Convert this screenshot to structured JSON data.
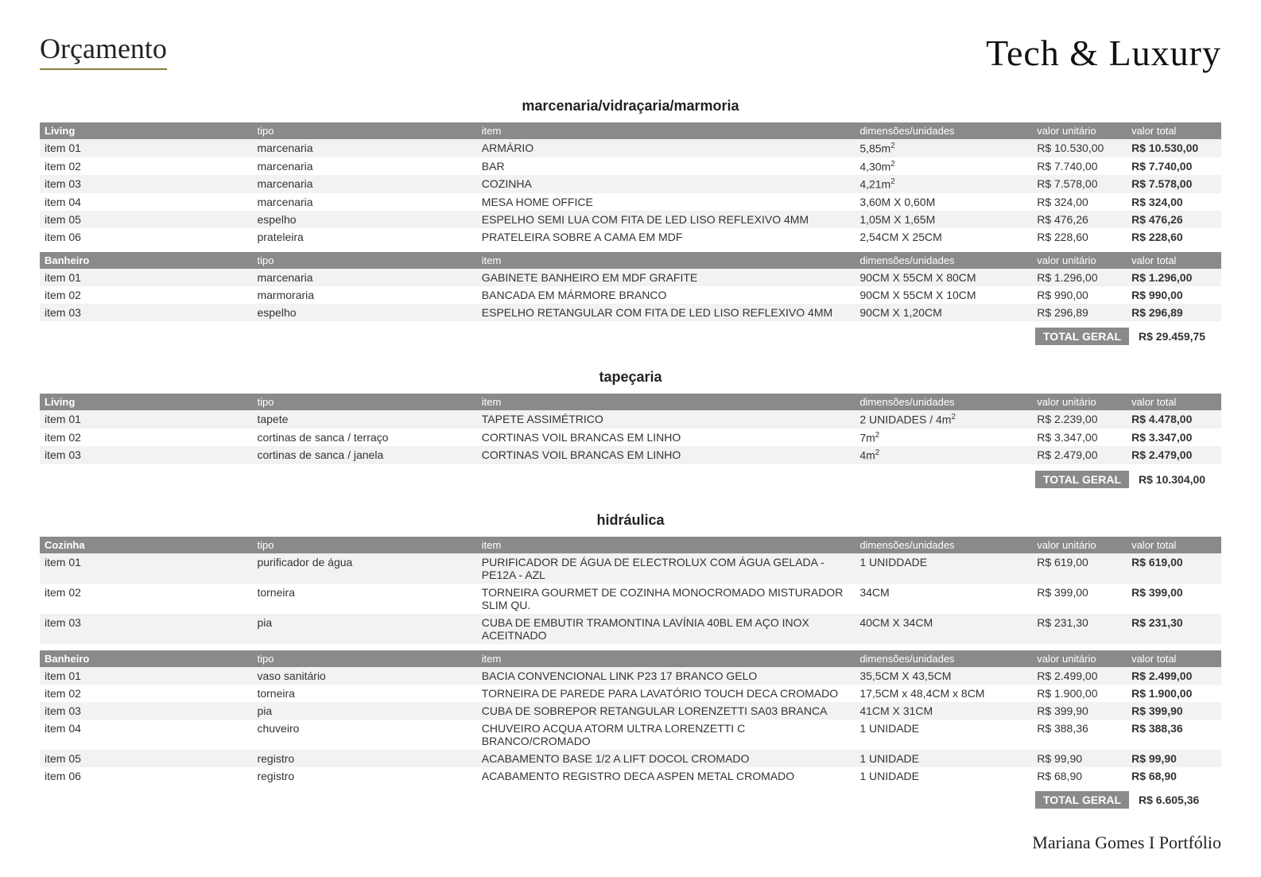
{
  "header": {
    "title": "Orçamento",
    "brand": "Tech & Luxury"
  },
  "footer": "Mariana Gomes I Portfólio",
  "colors": {
    "header_bg": "#8a8a8a",
    "header_text": "#ffffff",
    "row_alt": "#f2f2f2",
    "underline": "#8b7d3a"
  },
  "sections": [
    {
      "title": "marcenaria/vidraçaria/marmoria",
      "tables": [
        {
          "group": "Living",
          "columns": [
            "tipo",
            "item",
            "dimensões/unidades",
            "valor unitário",
            "valor total"
          ],
          "rows": [
            {
              "name": "item 01",
              "tipo": "marcenaria",
              "item": "ARMÁRIO",
              "dim": "5,85m²",
              "unit": "R$ 10.530,00",
              "total": "R$ 10.530,00"
            },
            {
              "name": "item 02",
              "tipo": "marcenaria",
              "item": "BAR",
              "dim": "4,30m²",
              "unit": "R$ 7.740,00",
              "total": "R$ 7.740,00"
            },
            {
              "name": "item 03",
              "tipo": "marcenaria",
              "item": "COZINHA",
              "dim": "4,21m²",
              "unit": "R$ 7.578,00",
              "total": "R$ 7.578,00"
            },
            {
              "name": "item 04",
              "tipo": "marcenaria",
              "item": "MESA HOME OFFICE",
              "dim": "3,60M X 0,60M",
              "unit": "R$ 324,00",
              "total": "R$ 324,00"
            },
            {
              "name": "item 05",
              "tipo": "espelho",
              "item": "ESPELHO SEMI LUA COM FITA DE LED LISO REFLEXIVO 4MM",
              "dim": "1,05M X 1,65M",
              "unit": "R$ 476,26",
              "total": "R$ 476,26"
            },
            {
              "name": "item 06",
              "tipo": "prateleira",
              "item": "PRATELEIRA SOBRE A CAMA EM MDF",
              "dim": "2,54CM X 25CM",
              "unit": "R$ 228,60",
              "total": "R$ 228,60"
            }
          ]
        },
        {
          "group": "Banheiro",
          "columns": [
            "tipo",
            "item",
            "dimensões/unidades",
            "valor unitário",
            "valor total"
          ],
          "rows": [
            {
              "name": "item 01",
              "tipo": "marcenaria",
              "item": "GABINETE BANHEIRO EM MDF GRAFITE",
              "dim": "90CM X 55CM X 80CM",
              "unit": "R$ 1.296,00",
              "total": "R$ 1.296,00"
            },
            {
              "name": "item 02",
              "tipo": "marmoraria",
              "item": "BANCADA EM MÁRMORE BRANCO",
              "dim": "90CM X 55CM X 10CM",
              "unit": "R$ 990,00",
              "total": "R$ 990,00"
            },
            {
              "name": "item 03",
              "tipo": "espelho",
              "item": "ESPELHO RETANGULAR COM FITA DE LED LISO REFLEXIVO 4MM",
              "dim": "90CM X 1,20CM",
              "unit": "R$ 296,89",
              "total": "R$ 296,89"
            }
          ]
        }
      ],
      "total_label": "TOTAL GERAL",
      "total_value": "R$ 29.459,75"
    },
    {
      "title": "tapeçaria",
      "tables": [
        {
          "group": "Living",
          "columns": [
            "tipo",
            "item",
            "dimensões/unidades",
            "valor unitário",
            "valor total"
          ],
          "rows": [
            {
              "name": "item 01",
              "tipo": "tapete",
              "item": "TAPETE ASSIMÉTRICO",
              "dim": "2 UNIDADES / 4m²",
              "unit": "R$ 2.239,00",
              "total": "R$ 4.478,00"
            },
            {
              "name": "item 02",
              "tipo": "cortinas de sanca / terraço",
              "item": "CORTINAS VOIL BRANCAS EM LINHO",
              "dim": "7m²",
              "unit": "R$ 3.347,00",
              "total": "R$ 3.347,00"
            },
            {
              "name": "item 03",
              "tipo": "cortinas de sanca / janela",
              "item": "CORTINAS VOIL BRANCAS EM LINHO",
              "dim": "4m²",
              "unit": "R$ 2.479,00",
              "total": "R$ 2.479,00"
            }
          ]
        }
      ],
      "total_label": "TOTAL GERAL",
      "total_value": "R$ 10.304,00"
    },
    {
      "title": "hidráulica",
      "tables": [
        {
          "group": "Cozinha",
          "columns": [
            "tipo",
            "item",
            "dimensões/unidades",
            "valor unitário",
            "valor total"
          ],
          "rows": [
            {
              "name": "item 01",
              "tipo": "purificador de água",
              "item": "PURIFICADOR DE ÁGUA DE ELECTROLUX COM ÁGUA GELADA - PE12A - AZL",
              "dim": "1 UNIDDADE",
              "unit": "R$ 619,00",
              "total": "R$ 619,00"
            },
            {
              "name": "item 02",
              "tipo": "torneira",
              "item": "TORNEIRA GOURMET DE COZINHA MONOCROMADO MISTURADOR SLIM QU.",
              "dim": "34CM",
              "unit": "R$ 399,00",
              "total": "R$ 399,00"
            },
            {
              "name": "item 03",
              "tipo": "pia",
              "item": "CUBA DE EMBUTIR TRAMONTINA LAVÍNIA 40BL EM AÇO INOX ACEITNADO",
              "dim": "40CM X 34CM",
              "unit": "R$ 231,30",
              "total": "R$ 231,30"
            }
          ]
        },
        {
          "group": "Banheiro",
          "columns": [
            "tipo",
            "item",
            "dimensões/unidades",
            "valor unitário",
            "valor total"
          ],
          "rows": [
            {
              "name": "item 01",
              "tipo": "vaso sanitário",
              "item": "BACIA CONVENCIONAL LINK P23 17 BRANCO GELO",
              "dim": "35,5CM X 43,5CM",
              "unit": "R$ 2.499,00",
              "total": "R$ 2.499,00"
            },
            {
              "name": "item 02",
              "tipo": "torneira",
              "item": "TORNEIRA DE PAREDE PARA LAVATÓRIO TOUCH DECA CROMADO",
              "dim": "17,5CM x 48,4CM x 8CM",
              "unit": "R$ 1.900,00",
              "total": "R$ 1.900,00"
            },
            {
              "name": "item 03",
              "tipo": "pia",
              "item": "CUBA DE SOBREPOR RETANGULAR LORENZETTI SA03 BRANCA",
              "dim": "41CM X 31CM",
              "unit": "R$ 399,90",
              "total": "R$ 399,90"
            },
            {
              "name": "item 04",
              "tipo": "chuveiro",
              "item": "CHUVEIRO ACQUA ATORM ULTRA LORENZETTI C BRANCO/CROMADO",
              "dim": "1 UNIDADE",
              "unit": "R$ 388,36",
              "total": "R$ 388,36"
            },
            {
              "name": "item 05",
              "tipo": "registro",
              "item": "ACABAMENTO BASE 1/2 A LIFT DOCOL CROMADO",
              "dim": "1 UNIDADE",
              "unit": "R$ 99,90",
              "total": "R$ 99,90"
            },
            {
              "name": "item 06",
              "tipo": "registro",
              "item": "ACABAMENTO REGISTRO DECA ASPEN METAL CROMADO",
              "dim": "1 UNIDADE",
              "unit": "R$ 68,90",
              "total": "R$ 68,90"
            }
          ]
        }
      ],
      "total_label": "TOTAL GERAL",
      "total_value": "R$ 6.605,36"
    }
  ]
}
